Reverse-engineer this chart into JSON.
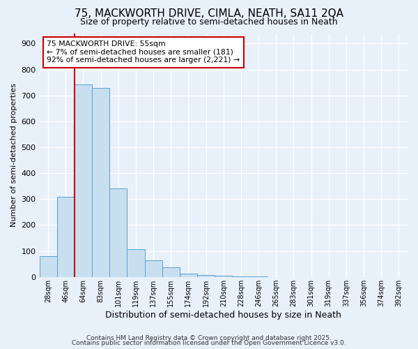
{
  "title1": "75, MACKWORTH DRIVE, CIMLA, NEATH, SA11 2QA",
  "title2": "Size of property relative to semi-detached houses in Neath",
  "xlabel": "Distribution of semi-detached houses by size in Neath",
  "ylabel": "Number of semi-detached properties",
  "bar_labels": [
    "28sqm",
    "46sqm",
    "64sqm",
    "83sqm",
    "101sqm",
    "119sqm",
    "137sqm",
    "155sqm",
    "174sqm",
    "192sqm",
    "210sqm",
    "228sqm",
    "246sqm",
    "265sqm",
    "283sqm",
    "301sqm",
    "319sqm",
    "337sqm",
    "356sqm",
    "374sqm",
    "392sqm"
  ],
  "bar_values": [
    80,
    308,
    742,
    730,
    340,
    108,
    65,
    38,
    13,
    8,
    5,
    2,
    1,
    0,
    0,
    0,
    0,
    0,
    0,
    0,
    0
  ],
  "bar_color": "#c8dff0",
  "bar_edge_color": "#5a9fd4",
  "background_color": "#e8f0fa",
  "grid_color": "#ffffff",
  "vline_x": 1.5,
  "vline_color": "#cc0000",
  "annotation_line1": "75 MACKWORTH DRIVE: 55sqm",
  "annotation_line2": "← 7% of semi-detached houses are smaller (181)",
  "annotation_line3": "92% of semi-detached houses are larger (2,221) →",
  "annotation_box_color": "#ffffff",
  "annotation_box_edge": "#cc0000",
  "ylim": [
    0,
    940
  ],
  "yticks": [
    0,
    100,
    200,
    300,
    400,
    500,
    600,
    700,
    800,
    900
  ],
  "footer1": "Contains HM Land Registry data © Crown copyright and database right 2025.",
  "footer2": "Contains public sector information licensed under the Open Government Licence v3.0.",
  "title1_fontsize": 11,
  "title2_fontsize": 9
}
